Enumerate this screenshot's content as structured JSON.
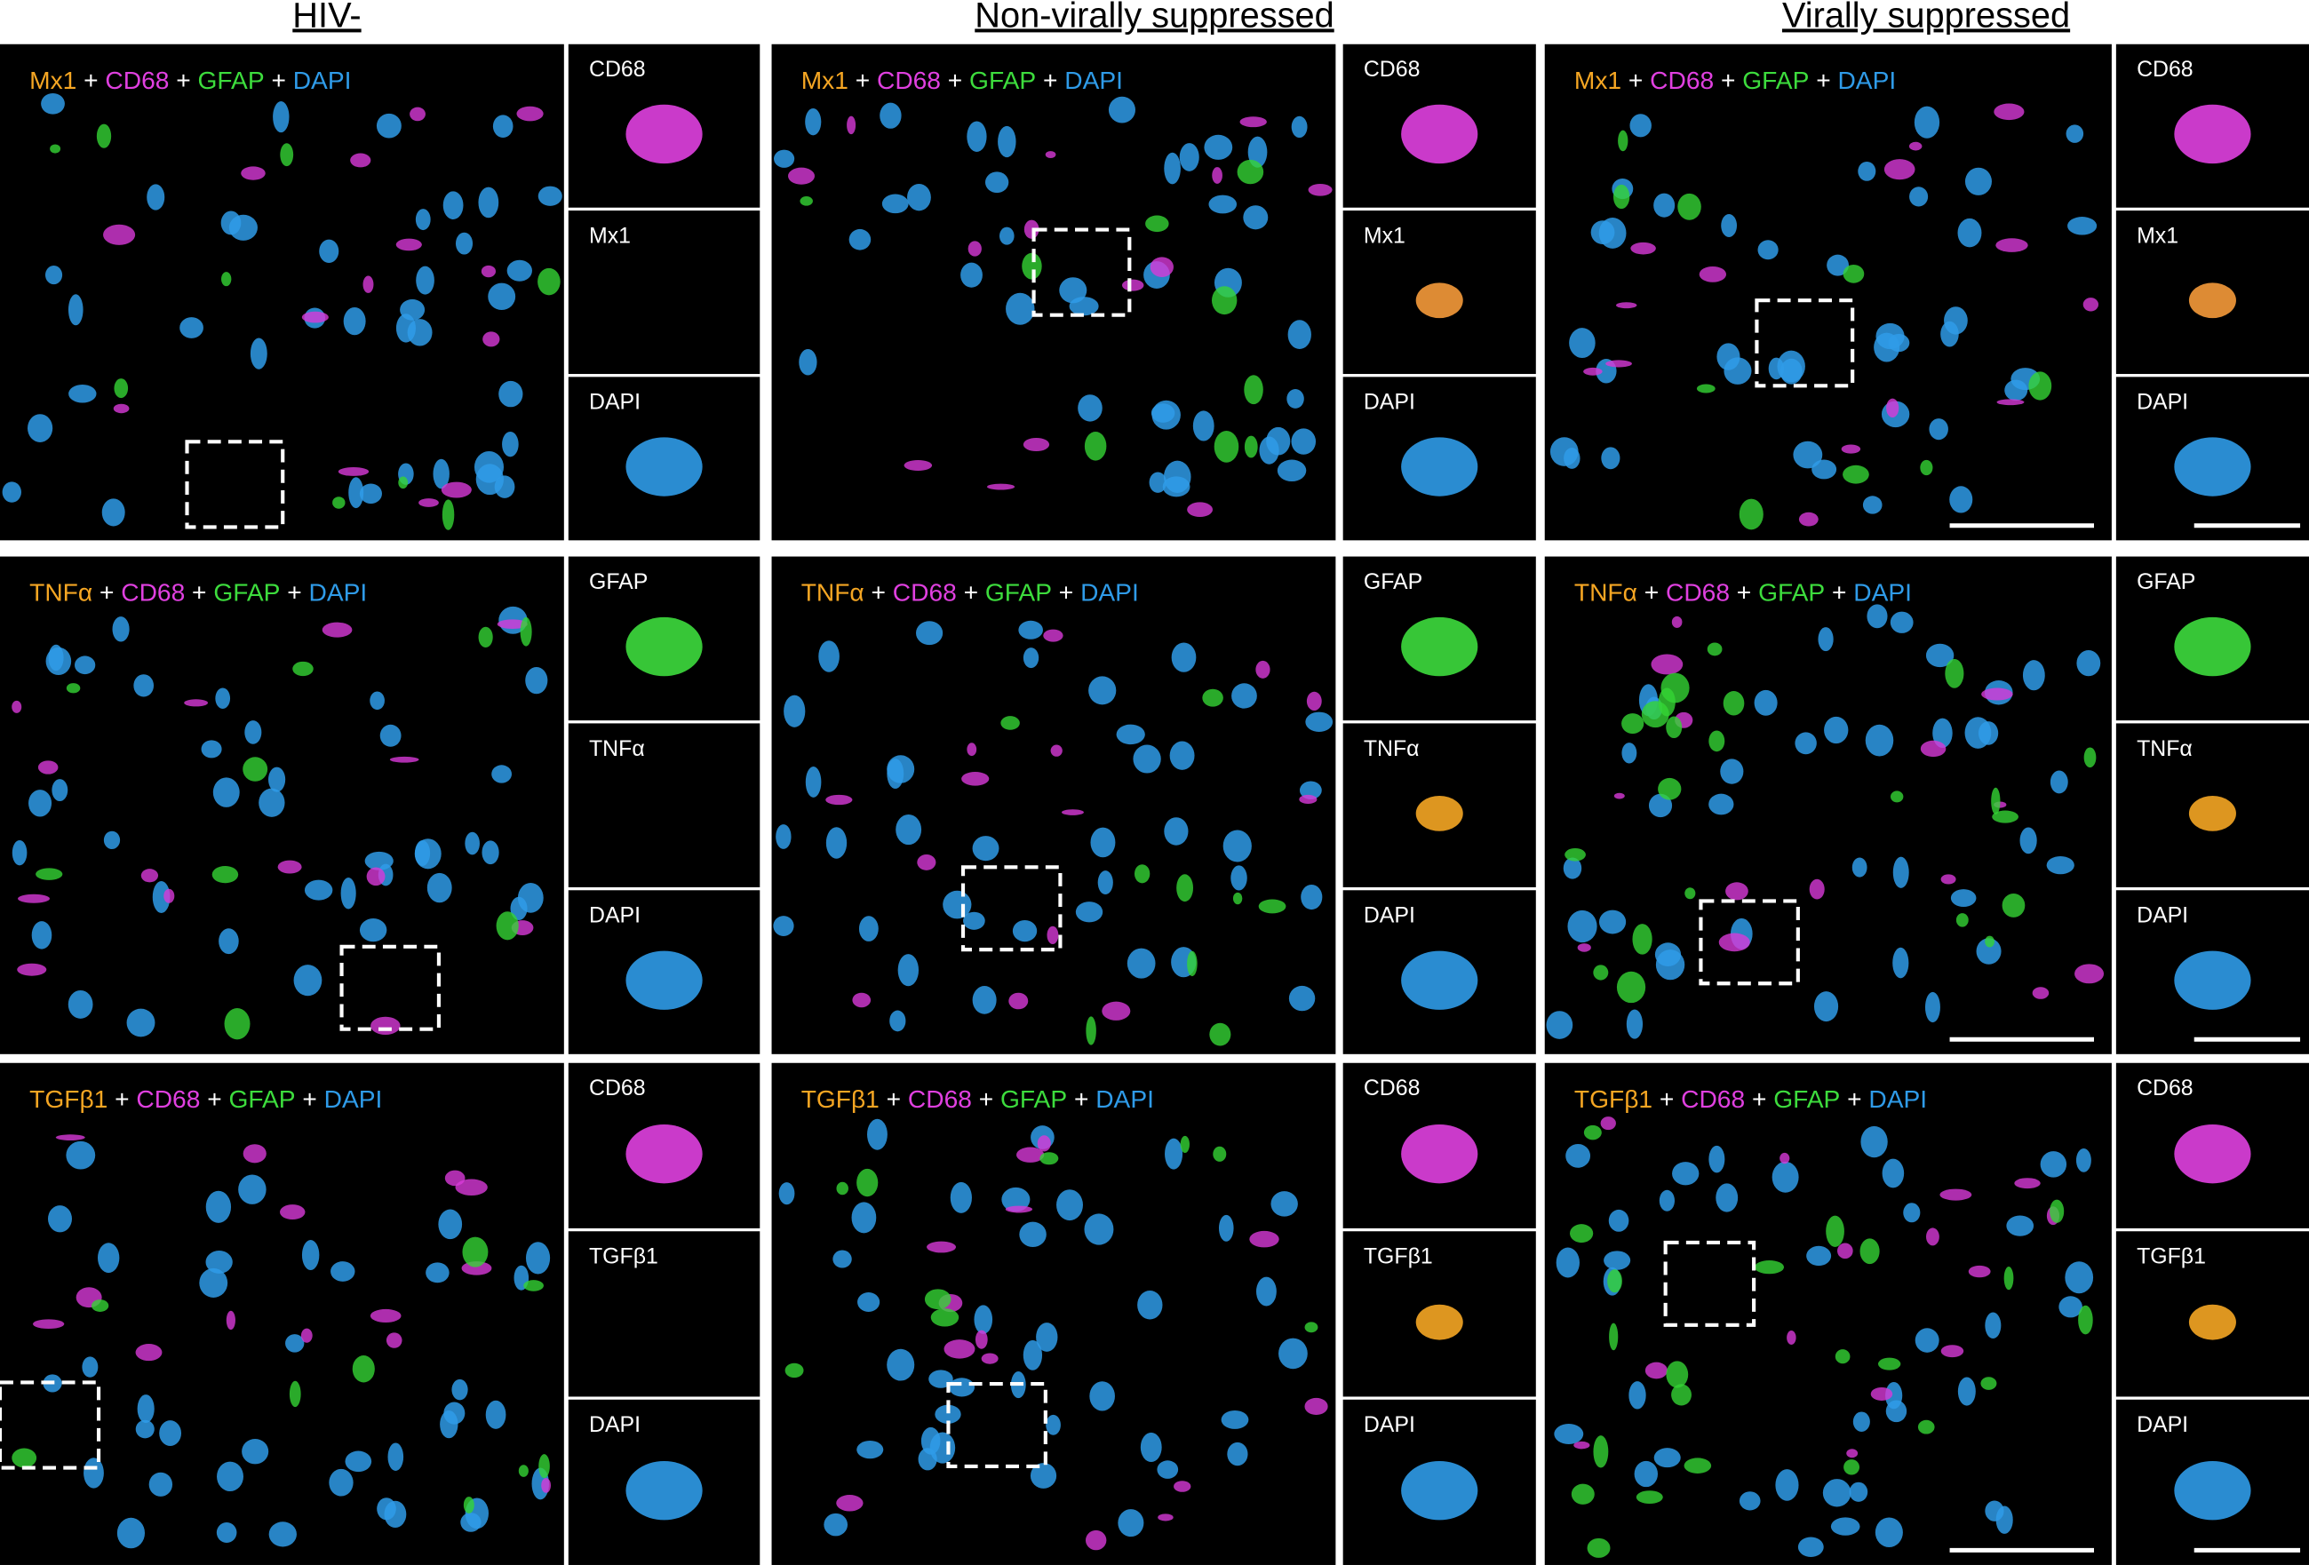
{
  "headers": [
    "HIV-",
    "Non-virally suppressed",
    "Virally suppressed"
  ],
  "panels": [
    [
      {
        "label": [
          "Mx1",
          "+",
          "CD68",
          "+",
          "GFAP",
          "+",
          "DAPI"
        ],
        "insets": [
          "CD68",
          "Mx1",
          "DAPI"
        ]
      },
      {
        "label": [
          "Mx1",
          "+",
          "CD68",
          "+",
          "GFAP",
          "+",
          "DAPI"
        ],
        "insets": [
          "CD68",
          "Mx1",
          "DAPI"
        ]
      },
      {
        "label": [
          "Mx1",
          "+",
          "CD68",
          "+",
          "GFAP",
          "+",
          "DAPI"
        ],
        "insets": [
          "CD68",
          "Mx1",
          "DAPI"
        ]
      }
    ],
    [
      {
        "label": [
          "TNFα",
          "+",
          "CD68",
          "+",
          "GFAP",
          "+",
          "DAPI"
        ],
        "insets": [
          "GFAP",
          "TNFα",
          "DAPI"
        ]
      },
      {
        "label": [
          "TNFα",
          "+",
          "CD68",
          "+",
          "GFAP",
          "+",
          "DAPI"
        ],
        "insets": [
          "GFAP",
          "TNFα",
          "DAPI"
        ]
      },
      {
        "label": [
          "TNFα",
          "+",
          "CD68",
          "+",
          "GFAP",
          "+",
          "DAPI"
        ],
        "insets": [
          "GFAP",
          "TNFα",
          "DAPI"
        ]
      }
    ],
    [
      {
        "label": [
          "TGFβ1",
          "+",
          "CD68",
          "+",
          "GFAP",
          "+",
          "DAPI"
        ],
        "insets": [
          "CD68",
          "TGFβ1",
          "DAPI"
        ]
      },
      {
        "label": [
          "TGFβ1",
          "+",
          "CD68",
          "+",
          "GFAP",
          "+",
          "DAPI"
        ],
        "insets": [
          "CD68",
          "TGFβ1",
          "DAPI"
        ]
      },
      {
        "label": [
          "TGFβ1",
          "+",
          "CD68",
          "+",
          "GFAP",
          "+",
          "DAPI"
        ],
        "insets": [
          "CD68",
          "TGFβ1",
          "DAPI"
        ]
      }
    ]
  ]
}
